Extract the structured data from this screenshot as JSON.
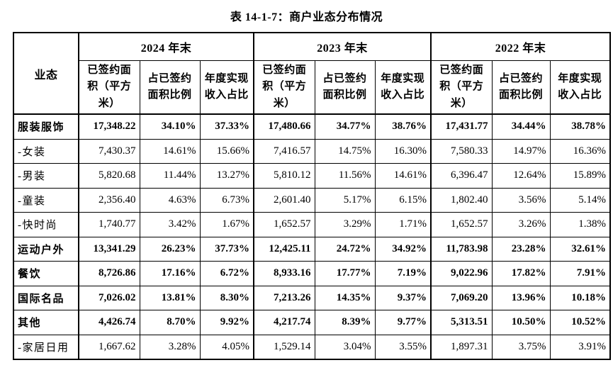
{
  "title": "表 14-1-7：商户业态分布情况",
  "table": {
    "corner_header": "业态",
    "year_groups": [
      "2024 年末",
      "2023 年末",
      "2022 年末"
    ],
    "sub_headers": [
      "已签约面积（平方米）",
      "占已签约面积比例",
      "年度实现收入占比"
    ],
    "rows": [
      {
        "label": "服装服饰",
        "bold": true,
        "values": [
          "17,348.22",
          "34.10%",
          "37.33%",
          "17,480.66",
          "34.77%",
          "38.76%",
          "17,431.77",
          "34.44%",
          "38.78%"
        ]
      },
      {
        "label": "-女装",
        "bold": false,
        "values": [
          "7,430.37",
          "14.61%",
          "15.66%",
          "7,416.57",
          "14.75%",
          "16.30%",
          "7,580.33",
          "14.97%",
          "16.36%"
        ]
      },
      {
        "label": "-男装",
        "bold": false,
        "values": [
          "5,820.68",
          "11.44%",
          "13.27%",
          "5,810.12",
          "11.56%",
          "14.61%",
          "6,396.47",
          "12.64%",
          "15.89%"
        ]
      },
      {
        "label": "-童装",
        "bold": false,
        "values": [
          "2,356.40",
          "4.63%",
          "6.73%",
          "2,601.40",
          "5.17%",
          "6.15%",
          "1,802.40",
          "3.56%",
          "5.14%"
        ]
      },
      {
        "label": "-快时尚",
        "bold": false,
        "values": [
          "1,740.77",
          "3.42%",
          "1.67%",
          "1,652.57",
          "3.29%",
          "1.71%",
          "1,652.57",
          "3.26%",
          "1.38%"
        ]
      },
      {
        "label": "运动户外",
        "bold": true,
        "values": [
          "13,341.29",
          "26.23%",
          "37.73%",
          "12,425.11",
          "24.72%",
          "34.92%",
          "11,783.98",
          "23.28%",
          "32.61%"
        ]
      },
      {
        "label": "餐饮",
        "bold": true,
        "values": [
          "8,726.86",
          "17.16%",
          "6.72%",
          "8,933.16",
          "17.77%",
          "7.19%",
          "9,022.96",
          "17.82%",
          "7.91%"
        ]
      },
      {
        "label": "国际名品",
        "bold": true,
        "values": [
          "7,026.02",
          "13.81%",
          "8.30%",
          "7,213.26",
          "14.35%",
          "9.37%",
          "7,069.20",
          "13.96%",
          "10.18%"
        ]
      },
      {
        "label": "其他",
        "bold": true,
        "values": [
          "4,426.74",
          "8.70%",
          "9.92%",
          "4,217.74",
          "8.39%",
          "9.77%",
          "5,313.51",
          "10.50%",
          "10.52%"
        ]
      },
      {
        "label": "-家居日用",
        "bold": false,
        "values": [
          "1,667.62",
          "3.28%",
          "4.05%",
          "1,529.14",
          "3.04%",
          "3.55%",
          "1,897.31",
          "3.75%",
          "3.91%"
        ]
      }
    ]
  }
}
